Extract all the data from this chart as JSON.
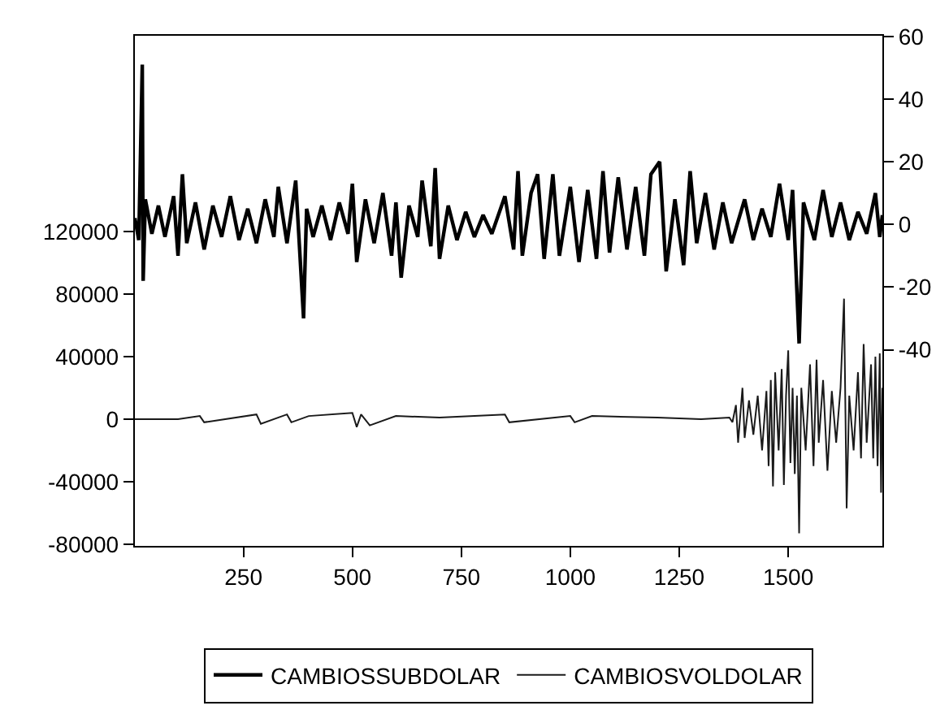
{
  "chart_data": {
    "type": "line",
    "xlim": [
      1,
      1716
    ],
    "xticks": [
      250,
      500,
      750,
      1000,
      1250,
      1500
    ],
    "ylim": [
      -81000,
      245000
    ],
    "yticks": [
      -80000,
      -40000,
      0,
      40000,
      80000,
      120000
    ],
    "y2lim": [
      -102.6,
      60.2
    ],
    "y2ticks": [
      -40,
      -20,
      0,
      20,
      40,
      60
    ],
    "legend": "bottom",
    "marker": "none",
    "line_style": "solid",
    "series": [
      {
        "name": "CAMBIOSSUBDOLAR",
        "color": "#000000",
        "axis": "y2",
        "x": [
          1,
          10,
          18,
          20,
          25,
          40,
          55,
          70,
          90,
          100,
          110,
          120,
          140,
          160,
          180,
          200,
          220,
          240,
          260,
          280,
          300,
          320,
          330,
          350,
          370,
          388,
          395,
          410,
          430,
          450,
          470,
          490,
          500,
          510,
          530,
          550,
          570,
          590,
          600,
          612,
          630,
          650,
          660,
          680,
          690,
          700,
          720,
          740,
          760,
          780,
          800,
          820,
          850,
          870,
          880,
          890,
          910,
          925,
          940,
          960,
          975,
          1000,
          1020,
          1040,
          1060,
          1075,
          1090,
          1110,
          1130,
          1150,
          1170,
          1185,
          1205,
          1220,
          1240,
          1260,
          1275,
          1290,
          1310,
          1330,
          1350,
          1370,
          1400,
          1420,
          1440,
          1460,
          1480,
          1500,
          1510,
          1525,
          1535,
          1560,
          1580,
          1600,
          1620,
          1640,
          1660,
          1680,
          1700,
          1710,
          1716
        ],
        "values": [
          2,
          -5,
          51,
          -18,
          8,
          -3,
          6,
          -4,
          9,
          -10,
          16,
          -6,
          7,
          -8,
          6,
          -4,
          9,
          -5,
          5,
          -6,
          8,
          -4,
          12,
          -6,
          14,
          -30,
          5,
          -4,
          6,
          -5,
          7,
          -3,
          13,
          -12,
          8,
          -6,
          10,
          -10,
          7,
          -17,
          6,
          -4,
          14,
          -7,
          18,
          -11,
          6,
          -5,
          4,
          -4,
          3,
          -3,
          9,
          -8,
          17,
          -10,
          10,
          16,
          -11,
          16,
          -10,
          12,
          -12,
          11,
          -11,
          17,
          -9,
          15,
          -8,
          12,
          -10,
          16,
          20,
          -15,
          8,
          -13,
          17,
          -6,
          10,
          -8,
          7,
          -6,
          8,
          -5,
          5,
          -4,
          13,
          -5,
          11,
          -38,
          7,
          -5,
          11,
          -4,
          7,
          -5,
          4,
          -3,
          10,
          -4,
          3
        ]
      },
      {
        "name": "CAMBIOSVOLDOLAR",
        "color": "#1a1a1a",
        "x": [
          1,
          100,
          150,
          160,
          280,
          290,
          350,
          360,
          400,
          500,
          510,
          520,
          540,
          600,
          700,
          850,
          860,
          1000,
          1010,
          1050,
          1200,
          1300,
          1365,
          1372,
          1380,
          1385,
          1395,
          1400,
          1410,
          1420,
          1430,
          1440,
          1450,
          1455,
          1460,
          1465,
          1470,
          1478,
          1485,
          1490,
          1495,
          1500,
          1505,
          1510,
          1515,
          1520,
          1525,
          1530,
          1540,
          1550,
          1558,
          1565,
          1570,
          1580,
          1590,
          1600,
          1610,
          1620,
          1628,
          1634,
          1640,
          1650,
          1660,
          1667,
          1673,
          1680,
          1690,
          1695,
          1700,
          1705,
          1710,
          1713,
          1716
        ],
        "values": [
          0,
          0,
          2000,
          -2000,
          3000,
          -3000,
          3000,
          -2000,
          2000,
          4000,
          -5000,
          3000,
          -4000,
          2000,
          1000,
          3000,
          -2000,
          2000,
          -2000,
          2000,
          1000,
          0,
          1000,
          -2000,
          9000,
          -15000,
          20000,
          -12000,
          12000,
          -10000,
          15000,
          -20000,
          18000,
          -30000,
          25000,
          -43000,
          30000,
          -20000,
          32000,
          -42000,
          15000,
          44000,
          -28000,
          20000,
          -35000,
          15000,
          -73000,
          20000,
          -20000,
          35000,
          -30000,
          38000,
          -15000,
          25000,
          -33000,
          18000,
          -15000,
          20000,
          77000,
          -57000,
          15000,
          -20000,
          30000,
          -25000,
          48000,
          -15000,
          35000,
          -25000,
          40000,
          -30000,
          42000,
          -47000,
          20000
        ]
      }
    ]
  }
}
